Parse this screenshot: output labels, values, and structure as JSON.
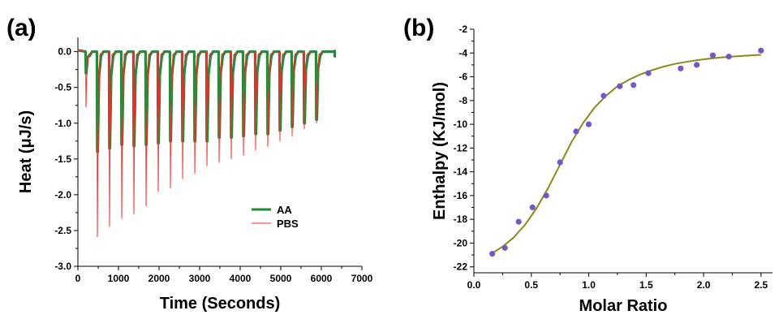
{
  "panels": {
    "a_label": "(a)",
    "b_label": "(b)"
  },
  "chart_data": [
    {
      "type": "line",
      "panel": "(a)",
      "title": "",
      "xlabel": "Time (Seconds)",
      "ylabel": "Heat (μJ/s)",
      "xlim": [
        0,
        7000
      ],
      "ylim": [
        -3.0,
        0.2
      ],
      "xticks": [
        "0",
        "1000",
        "2000",
        "3000",
        "4000",
        "5000",
        "6000",
        "7000"
      ],
      "yticks": [
        "0.0",
        "-0.5",
        "-1.0",
        "-1.5",
        "-2.0",
        "-2.5",
        "-3.0"
      ],
      "legend_position": "bottom-right",
      "grid": false,
      "colors": {
        "AA": "#1f8a3a",
        "PBS": "#ff2a2a"
      },
      "injection_times": [
        200,
        480,
        780,
        1080,
        1380,
        1680,
        1980,
        2280,
        2580,
        2880,
        3180,
        3480,
        3780,
        4080,
        4380,
        4680,
        4980,
        5280,
        5580,
        5880
      ],
      "series": [
        {
          "name": "AA",
          "peaks": [
            -0.3,
            -1.4,
            -1.35,
            -1.3,
            -1.32,
            -1.3,
            -1.28,
            -1.25,
            -1.25,
            -1.25,
            -1.25,
            -1.2,
            -1.2,
            -1.18,
            -1.15,
            -1.15,
            -1.1,
            -1.05,
            -1.0,
            -0.95
          ]
        },
        {
          "name": "PBS",
          "peaks": [
            -0.78,
            -2.59,
            -2.45,
            -2.33,
            -2.27,
            -2.16,
            -1.96,
            -1.91,
            -1.78,
            -1.71,
            -1.6,
            -1.55,
            -1.5,
            -1.45,
            -1.38,
            -1.33,
            -1.25,
            -1.18,
            -1.08,
            -1.0
          ]
        }
      ]
    },
    {
      "type": "scatter",
      "panel": "(b)",
      "title": "",
      "xlabel": "Molar Ratio",
      "ylabel": "Enthalpy (KJ/mol)",
      "xlim": [
        0.0,
        2.6
      ],
      "ylim": [
        -22.5,
        -2
      ],
      "xticks": [
        "0.0",
        "0.5",
        "1.0",
        "1.5",
        "2.0",
        "2.5"
      ],
      "yticks": [
        "-2",
        "-4",
        "-6",
        "-8",
        "-10",
        "-12",
        "-14",
        "-16",
        "-18",
        "-20",
        "-22"
      ],
      "grid": false,
      "colors": {
        "points": "#7a55c8",
        "fit": "#8a8a1a"
      },
      "points": {
        "x": [
          0.16,
          0.27,
          0.39,
          0.51,
          0.63,
          0.75,
          0.89,
          1.0,
          1.13,
          1.27,
          1.39,
          1.52,
          1.8,
          1.94,
          2.08,
          2.22,
          2.5
        ],
        "y": [
          -20.9,
          -20.4,
          -18.2,
          -17.0,
          -16.0,
          -13.2,
          -10.6,
          -10.0,
          -7.6,
          -6.8,
          -6.7,
          -5.7,
          -5.3,
          -5.0,
          -4.2,
          -4.3,
          -3.8
        ]
      },
      "fit": {
        "x": [
          0.15,
          0.25,
          0.35,
          0.45,
          0.55,
          0.65,
          0.75,
          0.85,
          0.95,
          1.05,
          1.15,
          1.25,
          1.35,
          1.45,
          1.55,
          1.65,
          1.75,
          1.85,
          1.95,
          2.05,
          2.15,
          2.25,
          2.35,
          2.5
        ],
        "y": [
          -20.9,
          -20.3,
          -19.5,
          -18.4,
          -17.0,
          -15.3,
          -13.4,
          -11.5,
          -9.9,
          -8.6,
          -7.6,
          -6.8,
          -6.25,
          -5.8,
          -5.45,
          -5.15,
          -4.92,
          -4.75,
          -4.6,
          -4.48,
          -4.38,
          -4.3,
          -4.24,
          -4.15
        ]
      }
    }
  ]
}
